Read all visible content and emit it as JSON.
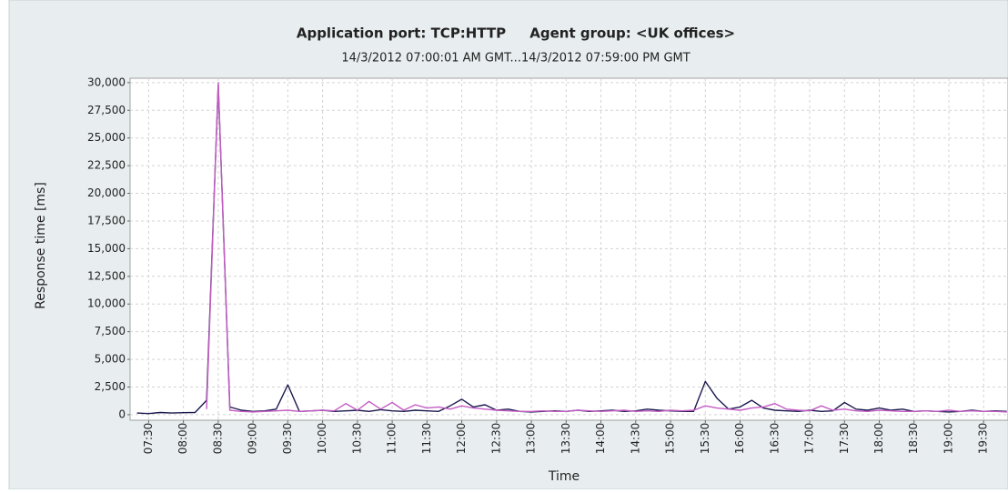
{
  "chart_data": {
    "type": "line",
    "title": "Application port: TCP:HTTP     Agent group: <UK offices>",
    "subtitle": "14/3/2012 07:00:01 AM GMT...14/3/2012 07:59:00 PM GMT",
    "x_label": "Time",
    "y_label": "Response time [ms]",
    "x": [
      "07:20",
      "07:30",
      "07:40",
      "07:50",
      "08:00",
      "08:10",
      "08:20",
      "08:30",
      "08:40",
      "08:50",
      "09:00",
      "09:10",
      "09:20",
      "09:30",
      "09:40",
      "09:50",
      "10:00",
      "10:10",
      "10:20",
      "10:30",
      "10:40",
      "10:50",
      "11:00",
      "11:10",
      "11:20",
      "11:30",
      "11:40",
      "11:50",
      "12:00",
      "12:10",
      "12:20",
      "12:30",
      "12:40",
      "12:50",
      "13:00",
      "13:10",
      "13:20",
      "13:30",
      "13:40",
      "13:50",
      "14:00",
      "14:10",
      "14:20",
      "14:30",
      "14:40",
      "14:50",
      "15:00",
      "15:10",
      "15:20",
      "15:30",
      "15:40",
      "15:50",
      "16:00",
      "16:10",
      "16:20",
      "16:30",
      "16:40",
      "16:50",
      "17:00",
      "17:10",
      "17:20",
      "17:30",
      "17:40",
      "17:50",
      "18:00",
      "18:10",
      "18:20",
      "18:30",
      "18:40",
      "18:50",
      "19:00",
      "19:10",
      "19:20",
      "19:30",
      "19:40",
      "19:50"
    ],
    "series": [
      {
        "color": "#1c1a4e",
        "values": [
          150,
          100,
          200,
          150,
          180,
          200,
          1300,
          29800,
          700,
          400,
          300,
          350,
          500,
          2700,
          300,
          350,
          400,
          300,
          350,
          400,
          300,
          450,
          350,
          300,
          400,
          350,
          300,
          800,
          1400,
          700,
          900,
          400,
          500,
          300,
          250,
          300,
          350,
          300,
          400,
          300,
          350,
          400,
          300,
          350,
          500,
          400,
          350,
          300,
          300,
          3000,
          1500,
          500,
          700,
          1300,
          600,
          400,
          350,
          300,
          400,
          300,
          350,
          1100,
          500,
          400,
          600,
          400,
          500,
          300,
          350,
          300,
          250,
          300,
          400,
          300,
          350,
          300
        ]
      },
      {
        "color": "#c45cc4",
        "values": [
          null,
          null,
          null,
          null,
          null,
          null,
          500,
          30000,
          400,
          300,
          250,
          300,
          350,
          400,
          300,
          350,
          400,
          350,
          1000,
          400,
          1200,
          500,
          1100,
          400,
          900,
          600,
          700,
          500,
          800,
          600,
          500,
          400,
          350,
          300,
          300,
          350,
          300,
          300,
          400,
          350,
          300,
          350,
          400,
          300,
          350,
          300,
          400,
          350,
          400,
          800,
          600,
          500,
          400,
          600,
          700,
          1000,
          500,
          400,
          350,
          800,
          400,
          500,
          350,
          300,
          400,
          350,
          300,
          300,
          350,
          300,
          400,
          300,
          350,
          300,
          300,
          250
        ]
      }
    ],
    "xlim": [
      "07:14",
      "19:51"
    ],
    "xticks": [
      "07:30",
      "08:00",
      "08:30",
      "09:00",
      "09:30",
      "10:00",
      "10:30",
      "11:00",
      "11:30",
      "12:00",
      "12:30",
      "13:00",
      "13:30",
      "14:00",
      "14:30",
      "15:00",
      "15:30",
      "16:00",
      "16:30",
      "17:00",
      "17:30",
      "18:00",
      "18:30",
      "19:00",
      "19:30"
    ],
    "ylim": [
      -500,
      30400
    ],
    "yticks": [
      0,
      {
        "value": 2500,
        "label": "2,500"
      },
      {
        "value": 5000,
        "label": "5,000"
      },
      {
        "value": 7500,
        "label": "7,500"
      },
      {
        "value": 10000,
        "label": "10,000"
      },
      {
        "value": 12500,
        "label": "12,500"
      },
      {
        "value": 15000,
        "label": "15,000"
      },
      {
        "value": 17500,
        "label": "17,500"
      },
      {
        "value": 20000,
        "label": "20,000"
      },
      {
        "value": 22500,
        "label": "22,500"
      },
      {
        "value": 25000,
        "label": "25,000"
      },
      {
        "value": 27500,
        "label": "27,500"
      },
      {
        "value": 30000,
        "label": "30,000"
      }
    ],
    "grid": true
  }
}
